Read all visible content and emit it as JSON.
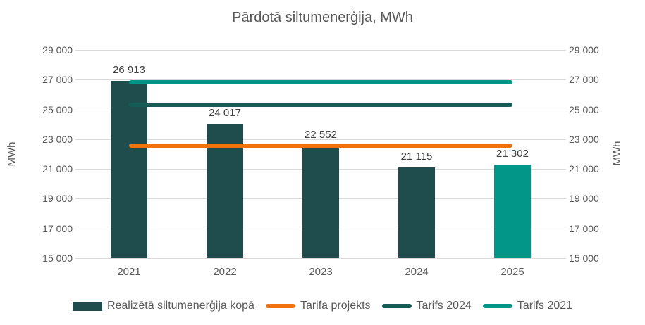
{
  "chart_data": {
    "type": "bar",
    "title": "Pārdotā siltumenerģija, MWh",
    "categories": [
      "2021",
      "2022",
      "2023",
      "2024",
      "2025"
    ],
    "series": [
      {
        "name": "Realizētā siltumenerģija kopā",
        "kind": "bar",
        "values": [
          26913,
          24017,
          22552,
          21115,
          21302
        ],
        "value_labels": [
          "26 913",
          "24 017",
          "22 552",
          "21 115",
          "21 302"
        ],
        "bar_colors": [
          "#1F4C4C",
          "#1F4C4C",
          "#1F4C4C",
          "#1F4C4C",
          "#019687"
        ]
      },
      {
        "name": "Tarifa projekts",
        "kind": "line",
        "value": 22550,
        "color": "#F3710D"
      },
      {
        "name": "Tarifs 2024",
        "kind": "line",
        "value": 25290,
        "color": "#155C56"
      },
      {
        "name": "Tarifs 2021",
        "kind": "line",
        "value": 26810,
        "color": "#019687"
      }
    ],
    "ylim": [
      15000,
      29000
    ],
    "ytick_values": [
      15000,
      17000,
      19000,
      21000,
      23000,
      25000,
      27000,
      29000
    ],
    "ytick_labels": [
      "15 000",
      "17 000",
      "19 000",
      "21 000",
      "23 000",
      "25 000",
      "27 000",
      "29 000"
    ],
    "ylabel": "MWh",
    "grid": true,
    "legend_position": "bottom"
  },
  "axes": {
    "left_title": "MWh",
    "right_title": "MWh"
  },
  "legend": {
    "items": [
      {
        "label": "Realizētā siltumenerģija kopā",
        "swatch": "bar",
        "color": "#1F4C4C"
      },
      {
        "label": "Tarifa projekts",
        "swatch": "line",
        "color": "#F3710D"
      },
      {
        "label": "Tarifs 2024",
        "swatch": "line",
        "color": "#155C56"
      },
      {
        "label": "Tarifs 2021",
        "swatch": "line",
        "color": "#019687"
      }
    ]
  },
  "colors": {
    "grid": "#D9D9D9",
    "text": "#595959",
    "data_label": "#404040",
    "background": "#FFFFFF"
  }
}
